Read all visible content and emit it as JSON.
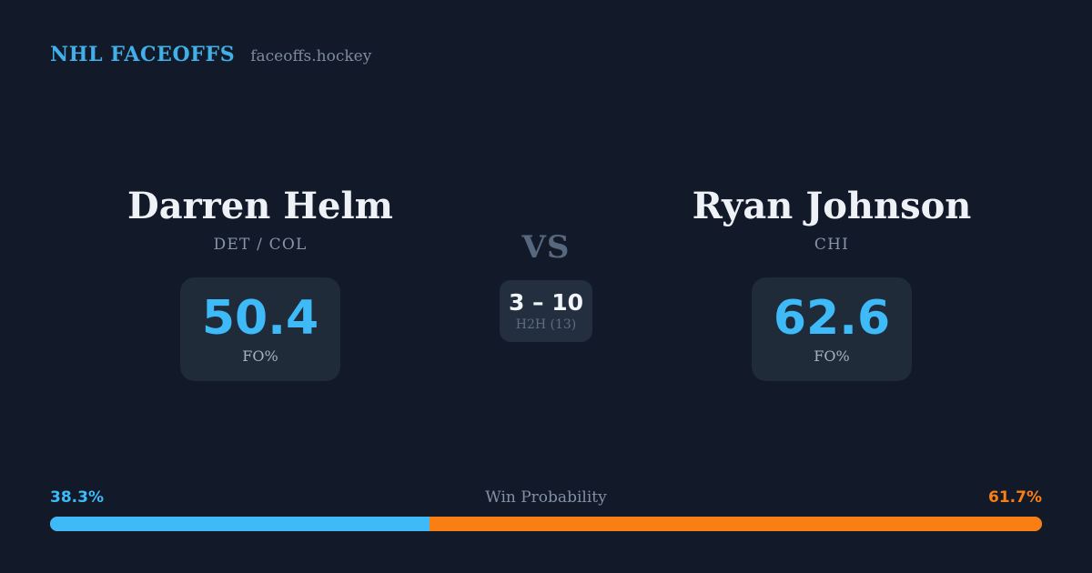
{
  "header": {
    "brand": "NHL FACEOFFS",
    "site": "faceoffs.hockey"
  },
  "players": [
    {
      "name": "Darren Helm",
      "team": "DET / COL",
      "fo_pct": "50.4",
      "stat_label": "FO%"
    },
    {
      "name": "Ryan Johnson",
      "team": "CHI",
      "fo_pct": "62.6",
      "stat_label": "FO%"
    }
  ],
  "versus": {
    "label": "VS",
    "h2h_score": "3 – 10",
    "h2h_label": "H2H (13)"
  },
  "win_probability": {
    "title": "Win Probability",
    "left_label": "38.3%",
    "right_label": "61.7%",
    "left_value": 38.3,
    "right_value": 61.7
  },
  "chart_data": {
    "type": "bar",
    "title": "Win Probability",
    "categories": [
      "Darren Helm",
      "Ryan Johnson"
    ],
    "values": [
      38.3,
      61.7
    ],
    "unit": "%",
    "layout": "single horizontal stacked bar, full width",
    "colors": [
      "#3dbaf7",
      "#f97e14"
    ],
    "related_stats": {
      "faceoff_pct": [
        50.4,
        62.6
      ],
      "h2h_record": "3 – 10",
      "h2h_games": 13
    }
  },
  "colors": {
    "background": "#121a2a",
    "card": "#202b3a",
    "accent_blue": "#3dbaf7",
    "accent_orange": "#f97e14",
    "text_primary": "#eef2f7",
    "text_muted": "#8695a8"
  }
}
